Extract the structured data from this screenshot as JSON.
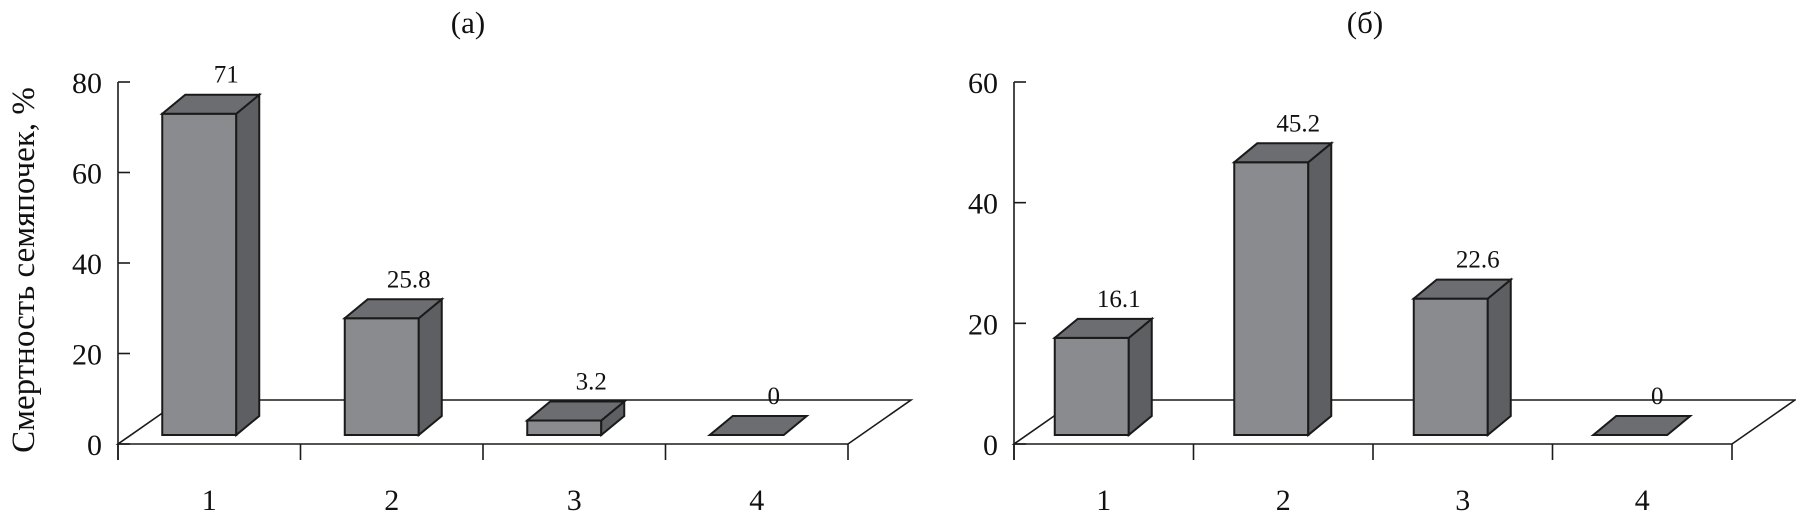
{
  "ylabel": "Смертность семяпочек, %",
  "colors": {
    "front": "#8a8b8e",
    "side": "#5e5f63",
    "top": "#6c6d70",
    "line": "#1a1a1a"
  },
  "chart_data": [
    {
      "type": "bar",
      "title": "(a)",
      "categories": [
        "1",
        "2",
        "3",
        "4"
      ],
      "values": [
        71,
        25.8,
        3.2,
        0
      ],
      "value_labels": [
        "71",
        "25.8",
        "3.2",
        "0"
      ],
      "ylabel": "Смертность семяпочек, %",
      "ylim": [
        0,
        80
      ],
      "yticks": [
        "0",
        "20",
        "40",
        "60",
        "80"
      ],
      "style": "3d",
      "grid": false
    },
    {
      "type": "bar",
      "title": "(б)",
      "categories": [
        "1",
        "2",
        "3",
        "4"
      ],
      "values": [
        16.1,
        45.2,
        22.6,
        0
      ],
      "value_labels": [
        "16.1",
        "45.2",
        "22.6",
        "0"
      ],
      "ylim": [
        0,
        60
      ],
      "yticks": [
        "0",
        "20",
        "40",
        "60"
      ],
      "style": "3d",
      "grid": false
    }
  ]
}
